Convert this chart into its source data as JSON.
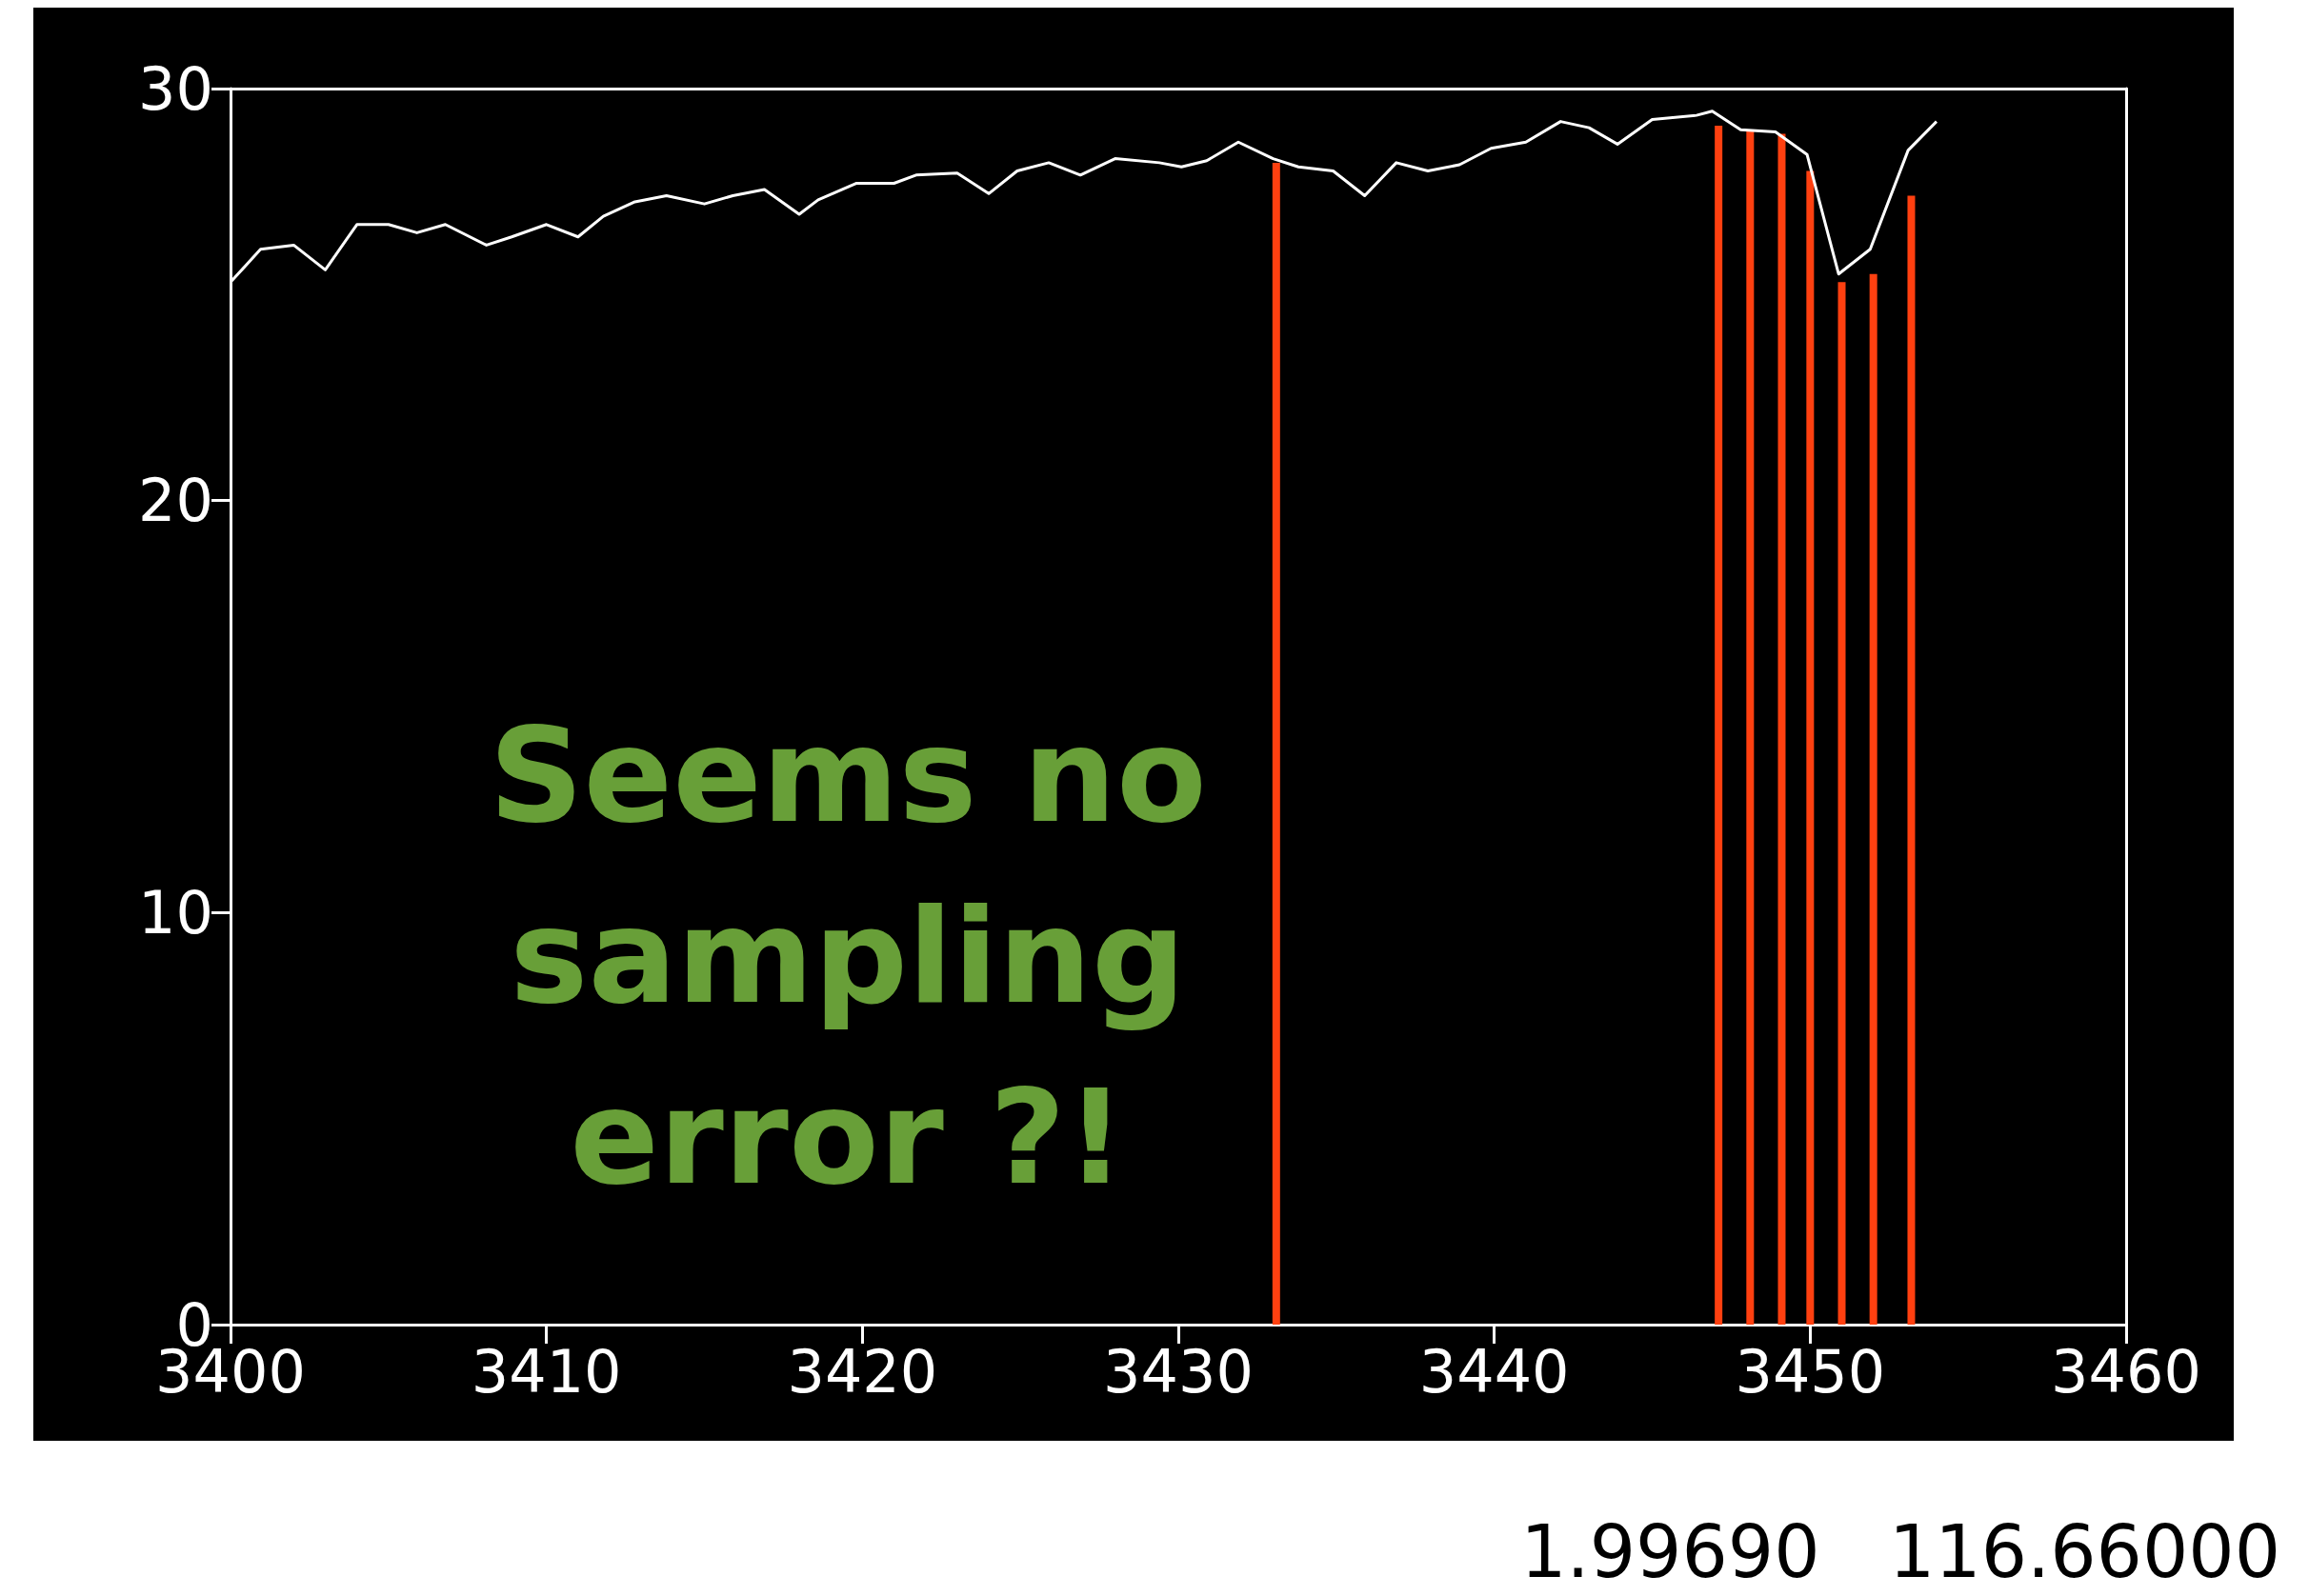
{
  "chart_data": {
    "type": "line",
    "series": [
      {
        "color": "#ffffff",
        "x": [
          3400,
          3400.95,
          3402,
          3403,
          3404,
          3405,
          3405.9,
          3406.8,
          3408.1,
          3408.9,
          3410,
          3411,
          3411.8,
          3412.8,
          3413.8,
          3415,
          3415.9,
          3416.9,
          3418,
          3418.6,
          3419.8,
          3421,
          3421.7,
          3423,
          3424,
          3424.9,
          3425.9,
          3426.9,
          3428,
          3429.4,
          3430.1,
          3430.9,
          3431.9,
          3433,
          3433.8,
          3434.9,
          3435.9,
          3436.9,
          3437.9,
          3438.9,
          3439.9,
          3441,
          3442.1,
          3443,
          3443.9,
          3445,
          3446.4,
          3446.9,
          3447.8,
          3448.9,
          3449.9,
          3450.9,
          3451.9,
          3453.1,
          3454
        ],
        "values": [
          25.3,
          26.1,
          26.2,
          25.6,
          26.7,
          26.7,
          26.5,
          26.7,
          26.2,
          26.4,
          26.7,
          26.4,
          26.9,
          27.25,
          27.4,
          27.2,
          27.4,
          27.55,
          26.95,
          27.3,
          27.7,
          27.7,
          27.9,
          27.95,
          27.45,
          28,
          28.2,
          27.9,
          28.3,
          28.2,
          28.1,
          28.25,
          28.7,
          28.3,
          28.1,
          28,
          27.4,
          28.2,
          28,
          28.15,
          28.55,
          28.7,
          29.2,
          29.05,
          28.65,
          29.25,
          29.35,
          29.45,
          29,
          28.95,
          28.4,
          25.5,
          26.1,
          28.5,
          29.2
        ]
      },
      {
        "type": "bar",
        "color": "#ff4010",
        "x": [
          3433.1,
          3447.1,
          3448.1,
          3449.1,
          3450,
          3451,
          3452,
          3453.2
        ],
        "values": [
          28.2,
          29.1,
          29,
          28.9,
          28,
          25.3,
          25.5,
          27.4
        ]
      }
    ],
    "xlim": [
      3400,
      3460
    ],
    "xticks": [
      3400,
      3410,
      3420,
      3430,
      3440,
      3450,
      3460
    ],
    "ylim": [
      0,
      30
    ],
    "yticks": [
      0,
      10,
      20,
      30
    ],
    "grid": false,
    "marker": "none",
    "line_style": "solid",
    "annotations": [
      "Seems no sampling error ?!",
      "1.99690   116.66000"
    ]
  }
}
